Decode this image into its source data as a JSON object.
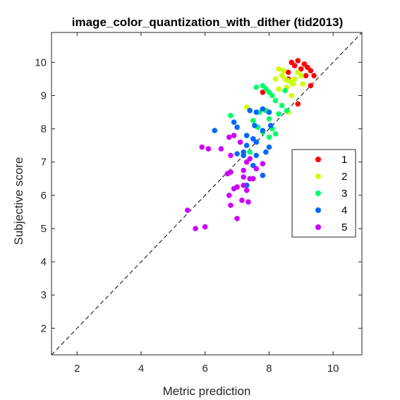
{
  "chart_data": {
    "type": "scatter",
    "title": "image_color_quantization_with_dither (tid2013)",
    "xlabel": "Metric prediction",
    "ylabel": "Subjective score",
    "xlim": [
      1.2,
      10.9
    ],
    "ylim": [
      1.2,
      10.9
    ],
    "xticks": [
      2,
      4,
      6,
      8,
      10
    ],
    "yticks": [
      2,
      3,
      4,
      5,
      6,
      7,
      8,
      9,
      10
    ],
    "grid": false,
    "legend_position": "right",
    "reference_line": "y = x (dashed)",
    "series": [
      {
        "name": "1",
        "color": "#ff0000",
        "points": [
          [
            8.7,
            10.0
          ],
          [
            8.9,
            10.05
          ],
          [
            9.1,
            9.95
          ],
          [
            9.2,
            9.85
          ],
          [
            9.3,
            9.75
          ],
          [
            9.0,
            9.8
          ],
          [
            8.8,
            9.9
          ],
          [
            9.4,
            9.6
          ],
          [
            8.6,
            9.7
          ],
          [
            9.15,
            9.6
          ],
          [
            9.3,
            9.3
          ],
          [
            8.9,
            8.75
          ],
          [
            7.8,
            9.1
          ],
          [
            8.6,
            9.5
          ]
        ]
      },
      {
        "name": "2",
        "color": "#ccff00",
        "points": [
          [
            8.3,
            9.8
          ],
          [
            8.4,
            9.6
          ],
          [
            8.5,
            9.5
          ],
          [
            8.6,
            9.45
          ],
          [
            8.7,
            9.4
          ],
          [
            8.8,
            9.5
          ],
          [
            8.9,
            9.7
          ],
          [
            9.0,
            9.6
          ],
          [
            8.2,
            9.5
          ],
          [
            8.45,
            9.75
          ],
          [
            8.75,
            9.35
          ],
          [
            8.55,
            9.25
          ],
          [
            8.3,
            9.2
          ],
          [
            9.05,
            9.35
          ],
          [
            8.7,
            9.0
          ],
          [
            7.3,
            8.65
          ],
          [
            8.6,
            8.5
          ]
        ]
      },
      {
        "name": "3",
        "color": "#00ff66",
        "points": [
          [
            7.6,
            9.25
          ],
          [
            7.8,
            9.3
          ],
          [
            7.9,
            9.2
          ],
          [
            8.0,
            9.1
          ],
          [
            8.1,
            9.0
          ],
          [
            8.2,
            8.85
          ],
          [
            8.4,
            8.7
          ],
          [
            8.5,
            9.15
          ],
          [
            8.55,
            8.55
          ],
          [
            8.3,
            8.45
          ],
          [
            7.7,
            8.5
          ],
          [
            7.9,
            8.55
          ],
          [
            8.0,
            8.3
          ],
          [
            8.1,
            8.0
          ],
          [
            8.2,
            7.85
          ],
          [
            8.0,
            7.75
          ],
          [
            7.5,
            8.25
          ],
          [
            7.8,
            7.9
          ],
          [
            7.65,
            8.05
          ],
          [
            6.8,
            8.4
          ],
          [
            7.4,
            7.3
          ]
        ]
      },
      {
        "name": "4",
        "color": "#0066ff",
        "points": [
          [
            7.4,
            8.55
          ],
          [
            7.6,
            8.5
          ],
          [
            7.8,
            8.6
          ],
          [
            8.0,
            8.5
          ],
          [
            7.55,
            8.1
          ],
          [
            7.8,
            7.95
          ],
          [
            7.3,
            7.8
          ],
          [
            7.5,
            7.7
          ],
          [
            7.6,
            7.6
          ],
          [
            8.0,
            7.45
          ],
          [
            7.3,
            7.5
          ],
          [
            7.2,
            7.2
          ],
          [
            7.6,
            7.2
          ],
          [
            7.9,
            7.3
          ],
          [
            7.8,
            6.6
          ],
          [
            7.5,
            6.9
          ],
          [
            7.3,
            6.3
          ],
          [
            6.3,
            7.95
          ],
          [
            6.9,
            8.2
          ],
          [
            7.0,
            8.05
          ],
          [
            8.05,
            8.1
          ],
          [
            7.2,
            7.3
          ],
          [
            7.0,
            7.25
          ]
        ]
      },
      {
        "name": "5",
        "color": "#cc00ff",
        "points": [
          [
            6.9,
            7.8
          ],
          [
            7.1,
            7.6
          ],
          [
            6.5,
            7.4
          ],
          [
            6.8,
            7.2
          ],
          [
            7.3,
            7.0
          ],
          [
            7.4,
            7.1
          ],
          [
            7.6,
            6.8
          ],
          [
            7.8,
            6.95
          ],
          [
            6.7,
            6.65
          ],
          [
            6.8,
            6.7
          ],
          [
            7.2,
            6.55
          ],
          [
            7.4,
            6.5
          ],
          [
            7.5,
            6.5
          ],
          [
            6.9,
            6.2
          ],
          [
            7.0,
            6.25
          ],
          [
            7.2,
            6.3
          ],
          [
            7.3,
            6.15
          ],
          [
            6.75,
            6.0
          ],
          [
            7.15,
            5.85
          ],
          [
            7.35,
            5.8
          ],
          [
            6.8,
            5.7
          ],
          [
            7.0,
            5.3
          ],
          [
            5.9,
            7.45
          ],
          [
            6.1,
            7.4
          ],
          [
            5.45,
            5.55
          ],
          [
            5.7,
            5.0
          ],
          [
            6.0,
            5.05
          ],
          [
            6.75,
            7.75
          ],
          [
            7.2,
            6.75
          ]
        ]
      }
    ]
  }
}
